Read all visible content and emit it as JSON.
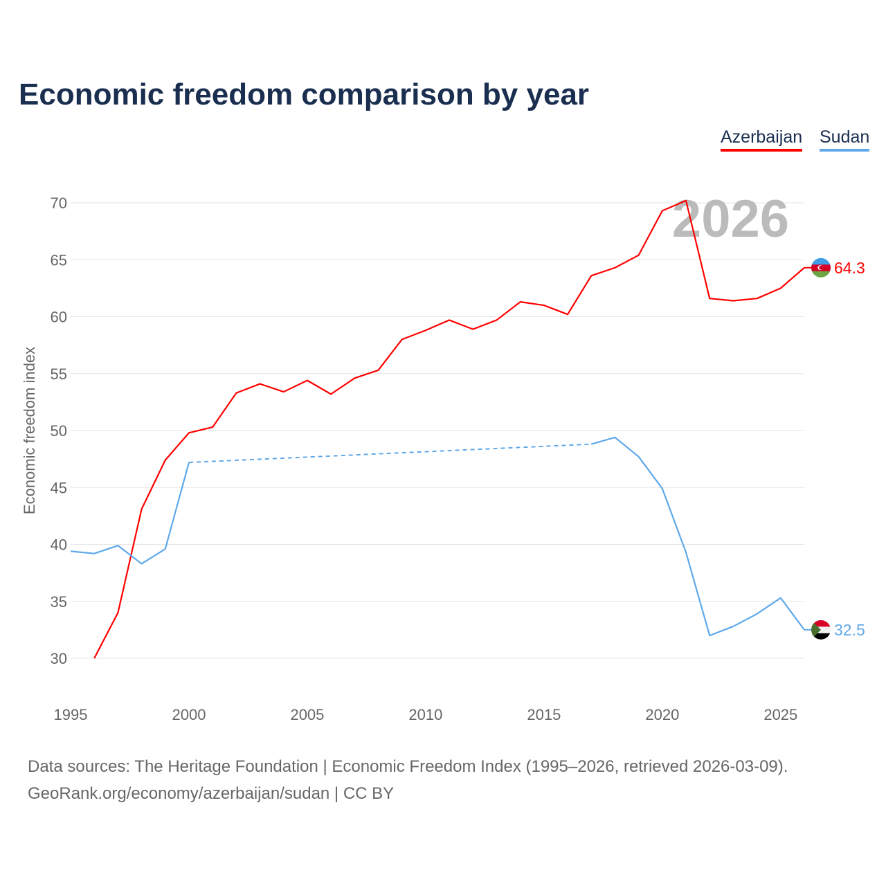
{
  "chart_data": {
    "type": "line",
    "title": "Economic freedom comparison by year",
    "ylabel": "Economic freedom index",
    "xlabel": "",
    "xlim": [
      1995,
      2026
    ],
    "ylim": [
      30,
      70
    ],
    "x_ticks": [
      "1995",
      "2000",
      "2005",
      "2010",
      "2015",
      "2020",
      "2025"
    ],
    "y_ticks": [
      "30",
      "35",
      "40",
      "45",
      "50",
      "55",
      "60",
      "65",
      "70"
    ],
    "grid": true,
    "legend_position": "top-right",
    "year_watermark": "2026",
    "series": [
      {
        "name": "Azerbaijan",
        "color": "#ff0000",
        "end_label": "64.3",
        "x": [
          1996,
          1997,
          1998,
          1999,
          2000,
          2001,
          2002,
          2003,
          2004,
          2005,
          2006,
          2007,
          2008,
          2009,
          2010,
          2011,
          2012,
          2013,
          2014,
          2015,
          2016,
          2017,
          2018,
          2019,
          2020,
          2021,
          2022,
          2023,
          2024,
          2025,
          2026
        ],
        "values": [
          30.0,
          34.0,
          43.1,
          47.4,
          49.8,
          50.3,
          53.3,
          54.1,
          53.4,
          54.4,
          53.2,
          54.6,
          55.3,
          58.0,
          58.8,
          59.7,
          58.9,
          59.7,
          61.3,
          61.0,
          60.2,
          63.6,
          64.3,
          65.4,
          69.3,
          70.2,
          61.6,
          61.4,
          61.6,
          62.5,
          64.3
        ]
      },
      {
        "name": "Sudan",
        "color": "#5ea8ea",
        "end_label": "32.5",
        "x": [
          1995,
          1996,
          1997,
          1998,
          1999,
          2000,
          2017,
          2018,
          2019,
          2020,
          2021,
          2022,
          2023,
          2024,
          2025,
          2026
        ],
        "values": [
          39.4,
          39.2,
          39.9,
          38.3,
          39.6,
          47.2,
          48.8,
          49.4,
          47.7,
          44.9,
          39.3,
          32.0,
          32.8,
          33.9,
          35.3,
          32.5
        ],
        "gap": [
          2000,
          2017
        ]
      }
    ]
  },
  "footer": {
    "line1": "Data sources: The Heritage Foundation | Economic Freedom Index (1995–2026, retrieved 2026-03-09).",
    "line2": "GeoRank.org/economy/azerbaijan/sudan | CC BY"
  }
}
